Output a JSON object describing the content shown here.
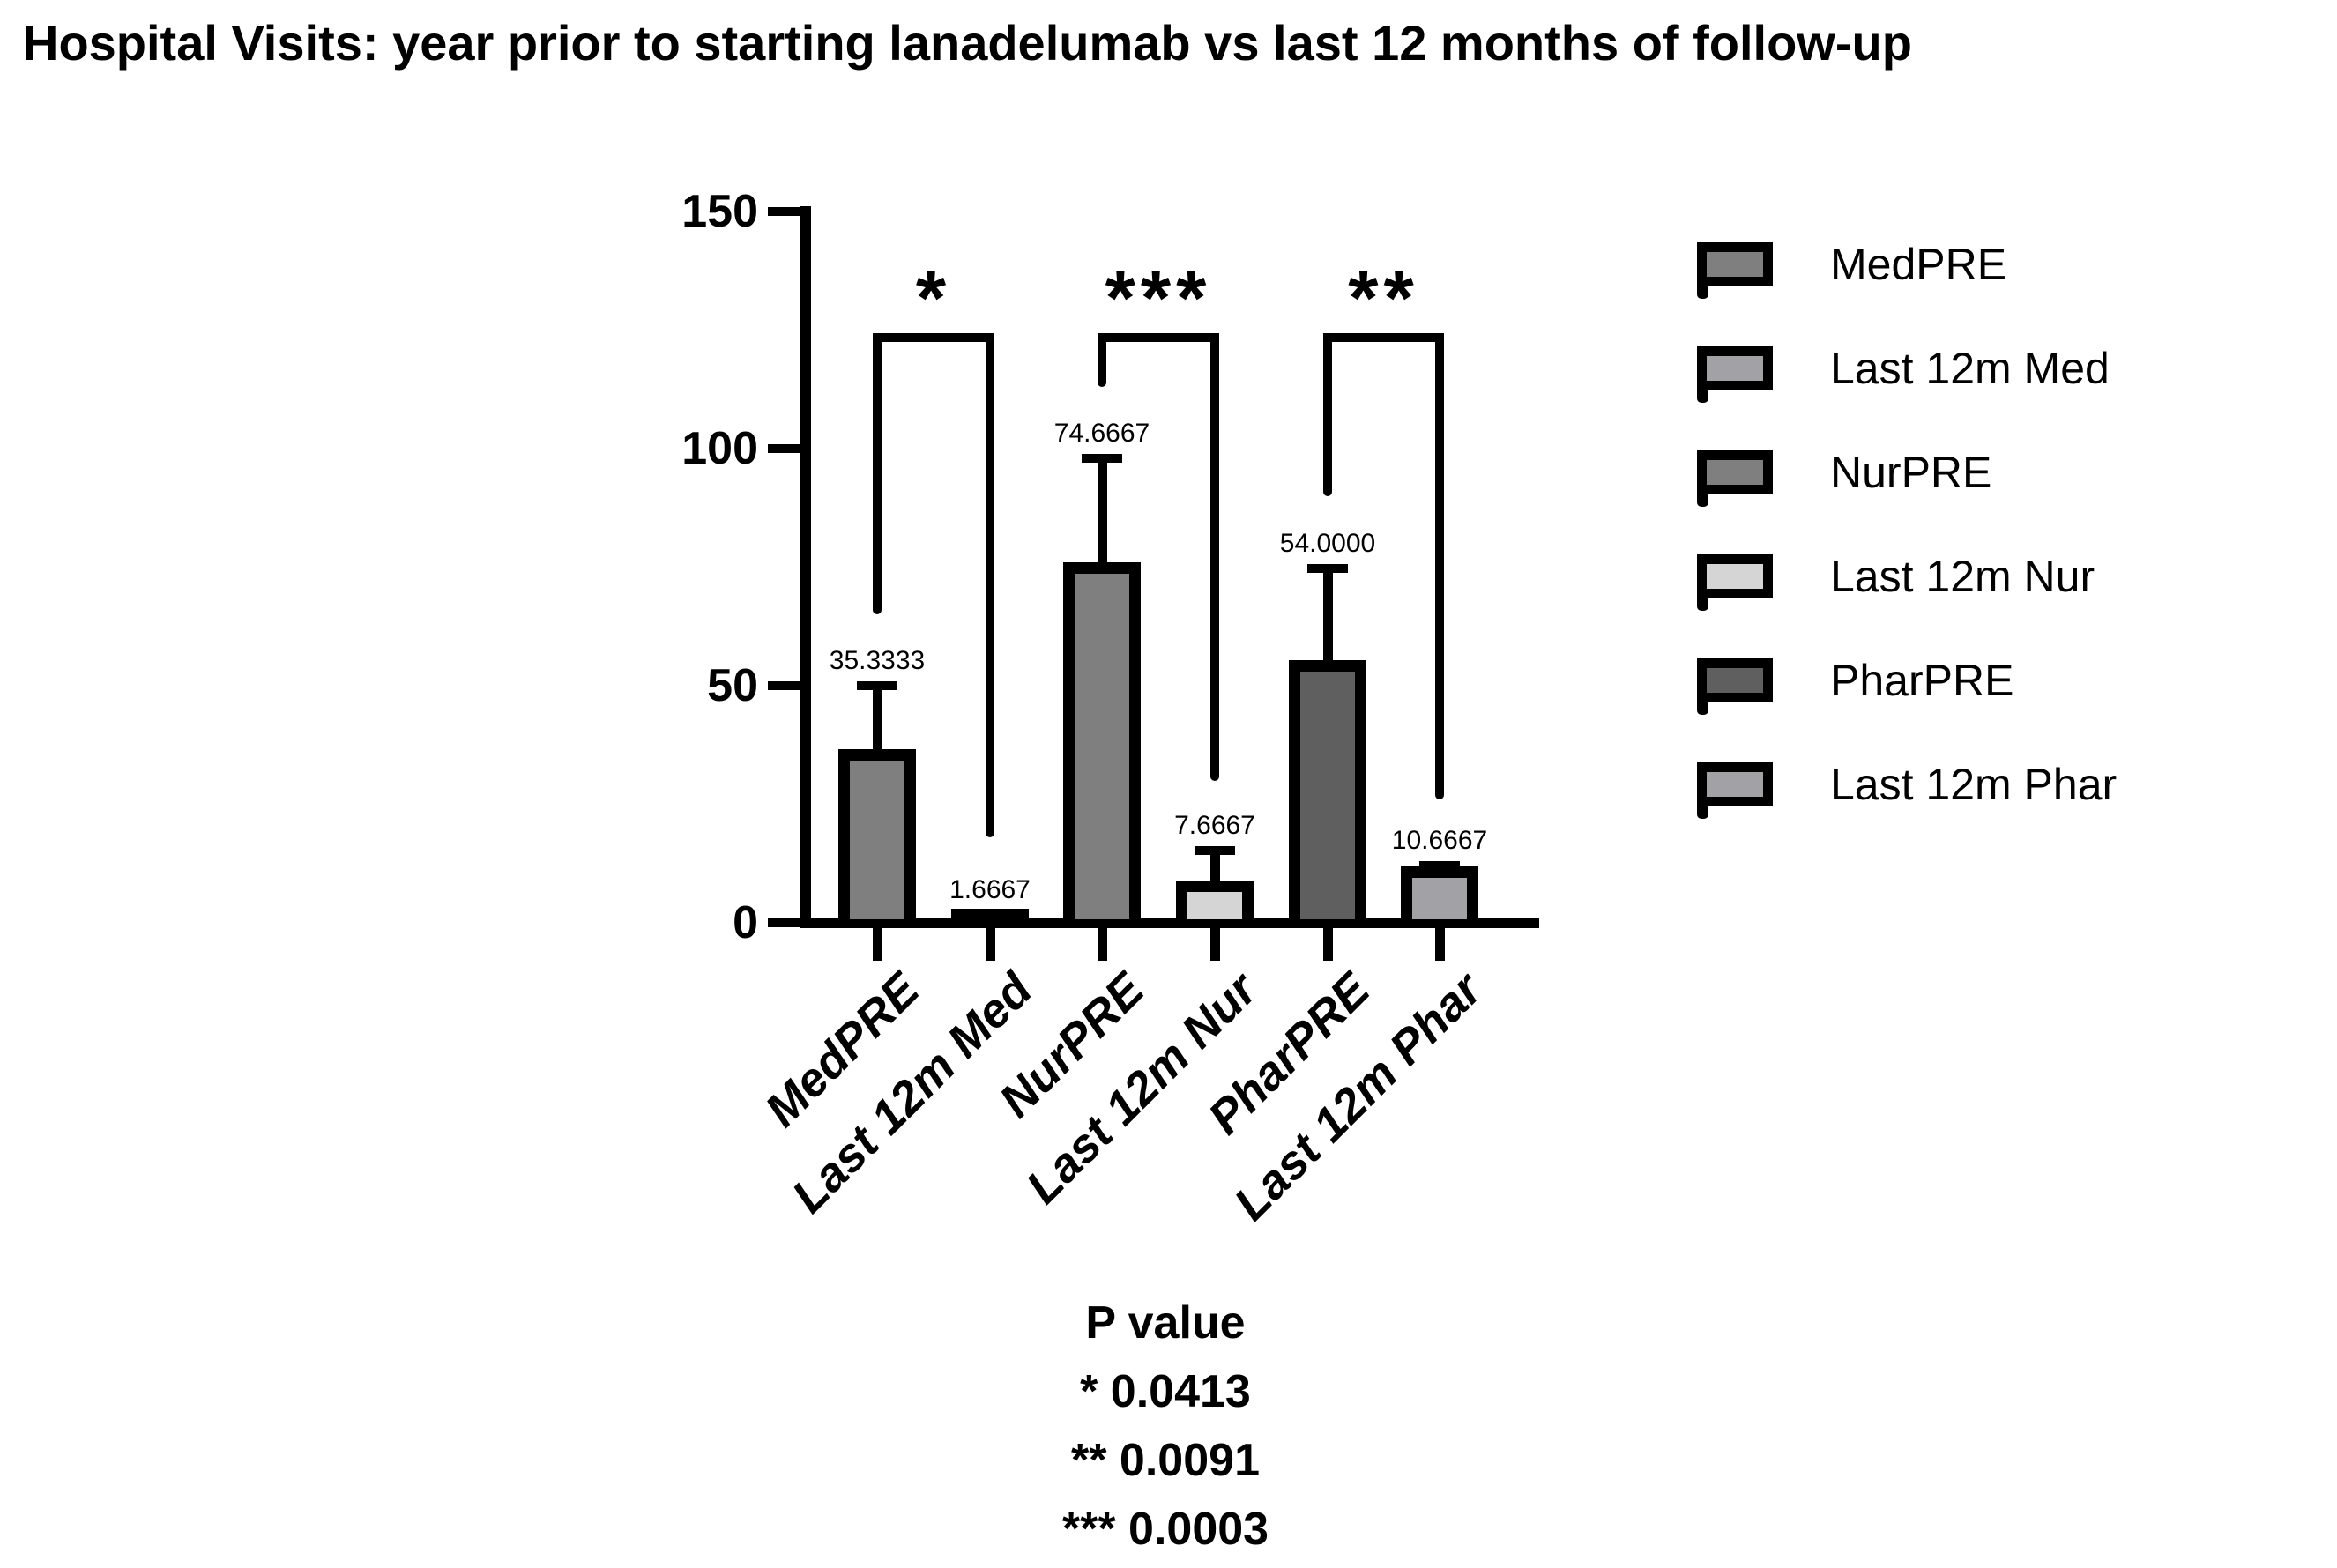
{
  "title": "Hospital Visits: year prior to starting lanadelumab vs last 12 months of follow-up",
  "chart_data": {
    "type": "bar",
    "title": "Hospital Visits: year prior to starting lanadelumab vs last 12 months of follow-up",
    "xlabel": "",
    "ylabel": "",
    "ylim": [
      0,
      150
    ],
    "yticks": [
      0,
      50,
      100,
      150
    ],
    "grid": false,
    "legend_position": "right",
    "categories": [
      "MedPRE",
      "Last 12m Med",
      "NurPRE",
      "Last 12m Nur",
      "PharPRE",
      "Last 12m Phar"
    ],
    "values": [
      35.3333,
      1.6667,
      74.6667,
      7.6667,
      54.0,
      10.6667
    ],
    "value_labels": [
      "35.3333",
      "1.6667",
      "74.6667",
      "7.6667",
      "54.0000",
      "10.6667"
    ],
    "error_plus": [
      14.7,
      null,
      23.3,
      7.6,
      20.7,
      1.4
    ],
    "bar_colors": [
      "#7f7f7f",
      "#a2a2a6",
      "#7f7f7f",
      "#d5d5d5",
      "#5f5f5f",
      "#a2a2a6"
    ],
    "outline_color": "#000000",
    "legend": [
      {
        "label": "MedPRE",
        "color": "#7f7f7f"
      },
      {
        "label": "Last 12m Med",
        "color": "#a2a2a6"
      },
      {
        "label": "NurPRE",
        "color": "#7f7f7f"
      },
      {
        "label": "Last 12m Nur",
        "color": "#d5d5d5"
      },
      {
        "label": "PharPRE",
        "color": "#5f5f5f"
      },
      {
        "label": "Last 12m Phar",
        "color": "#a2a2a6"
      }
    ],
    "significance": [
      {
        "stars": "*",
        "left_bar": 0,
        "right_bar": 1,
        "bracket_top": 123.5,
        "left_drop_to": 65,
        "right_drop_to": 18,
        "p": "0.0413"
      },
      {
        "stars": "***",
        "left_bar": 2,
        "right_bar": 3,
        "bracket_top": 123.5,
        "left_drop_to": 113,
        "right_drop_to": 30,
        "p": "0.0003"
      },
      {
        "stars": "**",
        "left_bar": 4,
        "right_bar": 5,
        "bracket_top": 123.5,
        "left_drop_to": 90,
        "right_drop_to": 26,
        "p": "0.0091"
      }
    ],
    "p_values": {
      "title": "P value",
      "lines": [
        "* 0.0413",
        "** 0.0091",
        "*** 0.0003"
      ]
    }
  }
}
